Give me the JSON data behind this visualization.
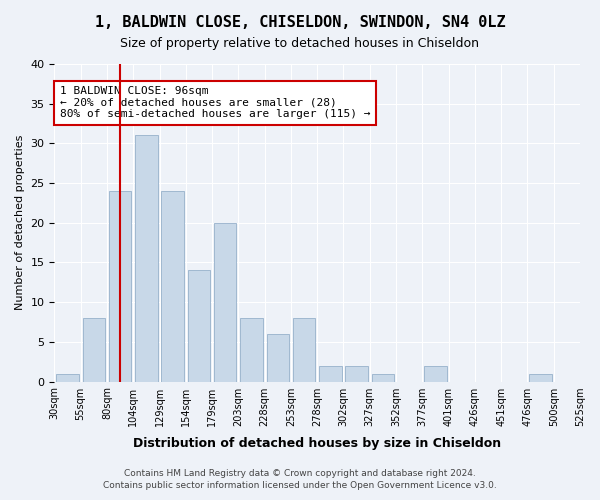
{
  "title1": "1, BALDWIN CLOSE, CHISELDON, SWINDON, SN4 0LZ",
  "title2": "Size of property relative to detached houses in Chiseldon",
  "xlabel": "Distribution of detached houses by size in Chiseldon",
  "ylabel": "Number of detached properties",
  "bin_labels": [
    "30sqm",
    "55sqm",
    "80sqm",
    "104sqm",
    "129sqm",
    "154sqm",
    "179sqm",
    "203sqm",
    "228sqm",
    "253sqm",
    "278sqm",
    "302sqm",
    "327sqm",
    "352sqm",
    "377sqm",
    "401sqm",
    "426sqm",
    "451sqm",
    "476sqm",
    "500sqm",
    "525sqm"
  ],
  "bar_values": [
    1,
    8,
    24,
    31,
    24,
    14,
    20,
    8,
    6,
    8,
    2,
    2,
    1,
    0,
    2,
    0,
    0,
    0,
    1,
    0
  ],
  "bar_color": "#c8d8e8",
  "bar_edge_color": "#a0b8d0",
  "vline_x": 2,
  "vline_color": "#cc0000",
  "annotation_text": "1 BALDWIN CLOSE: 96sqm\n← 20% of detached houses are smaller (28)\n80% of semi-detached houses are larger (115) →",
  "annotation_box_color": "#ffffff",
  "annotation_box_edge": "#cc0000",
  "ylim": [
    0,
    40
  ],
  "yticks": [
    0,
    5,
    10,
    15,
    20,
    25,
    30,
    35,
    40
  ],
  "footer1": "Contains HM Land Registry data © Crown copyright and database right 2024.",
  "footer2": "Contains public sector information licensed under the Open Government Licence v3.0.",
  "bg_color": "#eef2f8",
  "plot_bg_color": "#eef2f8"
}
